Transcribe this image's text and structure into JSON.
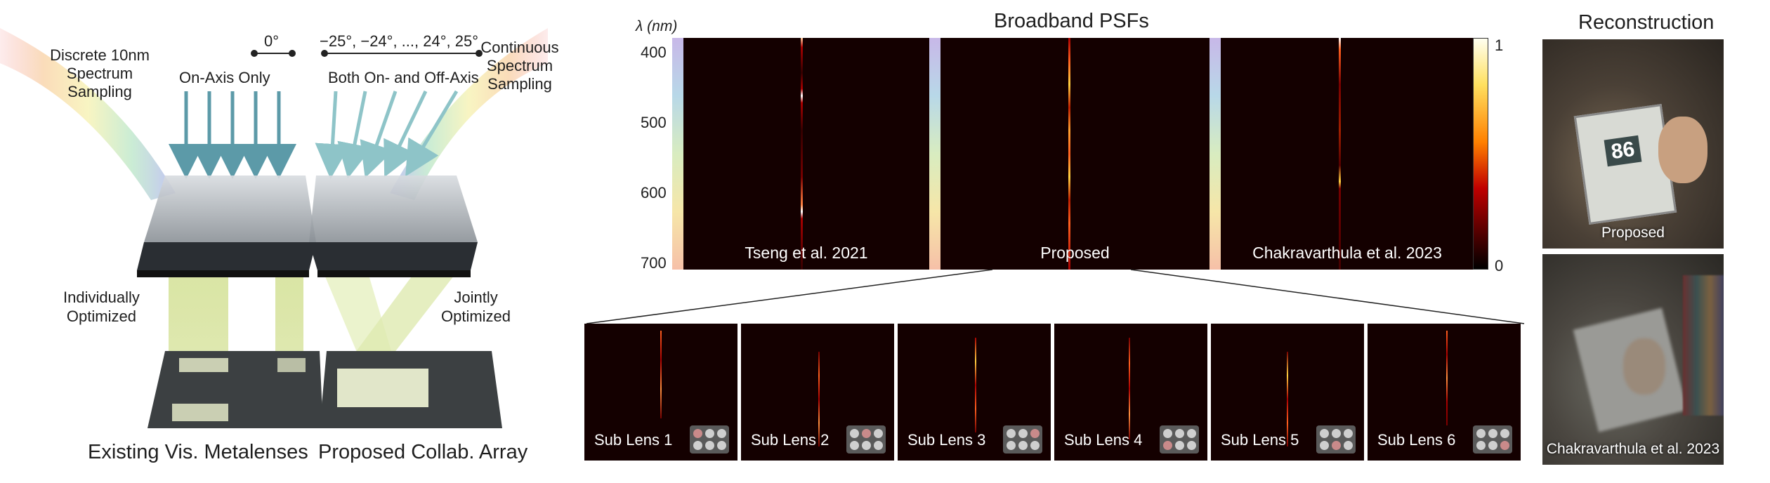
{
  "left": {
    "discrete_label": [
      "Discrete 10nm",
      "Spectrum",
      "Sampling"
    ],
    "zero_angle": "0°",
    "on_axis_label": "On-Axis Only",
    "angle_range": "−25°, −24°, ..., 24°, 25°",
    "both_axis_label": "Both On- and Off-Axis",
    "continuous_label": [
      "Continuous",
      "Spectrum",
      "Sampling"
    ],
    "individually_label": [
      "Individually",
      "Optimized"
    ],
    "jointly_label": [
      "Jointly",
      "Optimized"
    ],
    "existing_caption": "Existing Vis. Metalenses",
    "proposed_caption": "Proposed Collab. Array"
  },
  "psf": {
    "title": "Broadband PSFs",
    "axis_label": "λ (nm)",
    "ticks": [
      "400",
      "500",
      "600",
      "700"
    ],
    "colorbar_max": "1",
    "colorbar_min": "0",
    "panels": [
      "Tseng et al. 2021",
      "Proposed",
      "Chakravarthula et al. 2023"
    ],
    "sub_lenses": [
      "Sub Lens 1",
      "Sub Lens 2",
      "Sub Lens 3",
      "Sub Lens 4",
      "Sub Lens 5",
      "Sub Lens 6"
    ],
    "highlight_index": [
      0,
      1,
      2,
      3,
      4,
      5
    ]
  },
  "reconstruction": {
    "title": "Reconstruction",
    "book_number": "86",
    "panels": [
      "Proposed",
      "Chakravarthula et al. 2023"
    ]
  },
  "colors": {
    "psf_bg": "#140000",
    "highlight_lens": "#c98a8a",
    "arrow_teal": "#5c9aa8"
  }
}
